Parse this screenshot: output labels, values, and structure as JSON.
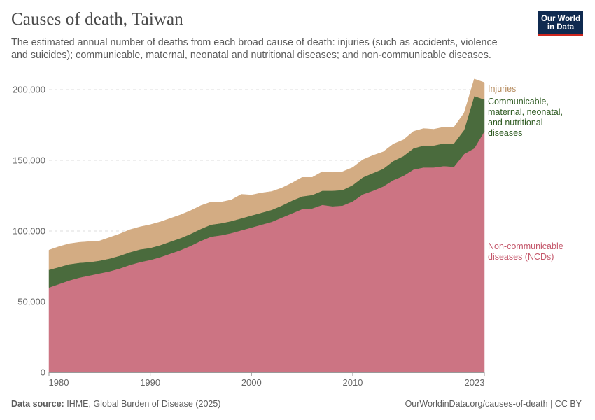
{
  "header": {
    "title": "Causes of death, Taiwan",
    "subtitle": "The estimated annual number of deaths from each broad cause of death: injuries (such as accidents, violence and suicides); communicable, maternal, neonatal and nutritional diseases; and non-communicable diseases."
  },
  "logo": {
    "line1": "Our World",
    "line2": "in Data"
  },
  "footer": {
    "source_label": "Data source:",
    "source_text": "IHME, Global Burden of Disease (2025)",
    "url": "OurWorldinData.org/causes-of-death | CC BY"
  },
  "chart_data": {
    "type": "area",
    "stacked": true,
    "title": "Causes of death, Taiwan",
    "xlabel": "",
    "ylabel": "",
    "xlim": [
      1980,
      2023
    ],
    "ylim": [
      0,
      200000
    ],
    "yticks": [
      0,
      50000,
      100000,
      150000,
      200000
    ],
    "ytick_labels": [
      "0",
      "50,000",
      "100,000",
      "150,000",
      "200,000"
    ],
    "xticks": [
      1980,
      1990,
      2000,
      2010,
      2023
    ],
    "xtick_labels": [
      "1980",
      "1990",
      "2000",
      "2010",
      "2023"
    ],
    "grid": true,
    "x": [
      1980,
      1981,
      1982,
      1983,
      1984,
      1985,
      1986,
      1987,
      1988,
      1989,
      1990,
      1991,
      1992,
      1993,
      1994,
      1995,
      1996,
      1997,
      1998,
      1999,
      2000,
      2001,
      2002,
      2003,
      2004,
      2005,
      2006,
      2007,
      2008,
      2009,
      2010,
      2011,
      2012,
      2013,
      2014,
      2015,
      2016,
      2017,
      2018,
      2019,
      2020,
      2021,
      2022,
      2023
    ],
    "series": [
      {
        "name": "Non-communicable diseases (NCDs)",
        "label_lines": [
          "Non-communicable",
          "diseases (NCDs)"
        ],
        "color": "#cc7483",
        "label_color": "#c4566a",
        "values": [
          60000,
          62500,
          65000,
          67000,
          68500,
          70000,
          71500,
          73500,
          76000,
          78000,
          79500,
          81500,
          84000,
          86500,
          89500,
          93000,
          96000,
          97000,
          98500,
          100500,
          102500,
          104500,
          106500,
          109500,
          112500,
          115500,
          116000,
          118500,
          117500,
          118000,
          121000,
          126000,
          128500,
          131500,
          136000,
          139000,
          143500,
          145000,
          145000,
          146000,
          145500,
          154500,
          158500,
          170500
        ]
      },
      {
        "name": "Communicable, maternal, neonatal, and nutritional diseases",
        "label_lines": [
          "Communicable,",
          "maternal, neonatal,",
          "and nutritional",
          "diseases"
        ],
        "color": "#4a6b3d",
        "label_color": "#2f5b22",
        "values": [
          12500,
          12000,
          11500,
          10500,
          9500,
          9000,
          9000,
          9000,
          9000,
          9000,
          8500,
          8500,
          8500,
          8500,
          8500,
          8500,
          8500,
          8500,
          8500,
          8500,
          8500,
          8500,
          8500,
          8500,
          9000,
          9000,
          9500,
          10000,
          11000,
          11000,
          11500,
          12000,
          12500,
          12500,
          13500,
          14000,
          15000,
          15500,
          15500,
          16000,
          16500,
          17000,
          37000,
          22500
        ]
      },
      {
        "name": "Injuries",
        "label_lines": [
          "Injuries"
        ],
        "color": "#d3ac83",
        "label_color": "#b58a5c",
        "values": [
          14000,
          14500,
          14500,
          14500,
          14500,
          14000,
          15000,
          15500,
          16000,
          16000,
          16500,
          16500,
          16500,
          16500,
          16500,
          16500,
          16000,
          15000,
          15000,
          17000,
          14500,
          14000,
          13000,
          12500,
          12500,
          13500,
          12500,
          13500,
          13000,
          13000,
          12500,
          12500,
          12500,
          12000,
          12000,
          11500,
          12000,
          12000,
          11500,
          11500,
          11500,
          12000,
          12000,
          12000
        ]
      }
    ]
  }
}
